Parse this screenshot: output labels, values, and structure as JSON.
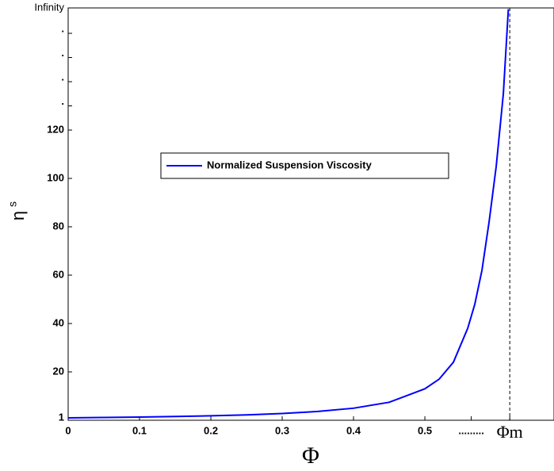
{
  "chart_data": {
    "type": "line",
    "xlabel": "Φ",
    "ylabel": "η",
    "ylabel_subscript": "s",
    "x": [
      0,
      0.05,
      0.1,
      0.15,
      0.2,
      0.25,
      0.3,
      0.35,
      0.4,
      0.45,
      0.5,
      0.52,
      0.54,
      0.56,
      0.57,
      0.58,
      0.59,
      0.6,
      0.61,
      0.617
    ],
    "series": [
      {
        "name": "Normalized Suspension Viscosity",
        "color": "#0000ff",
        "values": [
          1,
          1.14,
          1.31,
          1.54,
          1.83,
          2.23,
          2.79,
          3.63,
          4.98,
          7.43,
          13,
          17,
          24,
          38,
          48,
          62,
          82,
          105,
          135,
          170
        ]
      }
    ],
    "xlim": [
      0,
      0.681
    ],
    "ylim": [
      0,
      170.5
    ],
    "xticks": [
      0,
      0.1,
      0.2,
      0.3,
      0.4,
      0.5,
      {
        "value": 0.565,
        "label": "........."
      },
      {
        "value": 0.619,
        "label": "Φm"
      }
    ],
    "yticks": [
      1,
      20,
      40,
      60,
      80,
      100,
      120,
      {
        "value": 130,
        "label": "."
      },
      {
        "value": 140,
        "label": "."
      },
      {
        "value": 150,
        "label": "."
      },
      {
        "value": 160,
        "label": "."
      },
      {
        "value": 170.5,
        "label": "Infinity"
      }
    ],
    "vline": 0.619,
    "legend": "upper-left"
  }
}
